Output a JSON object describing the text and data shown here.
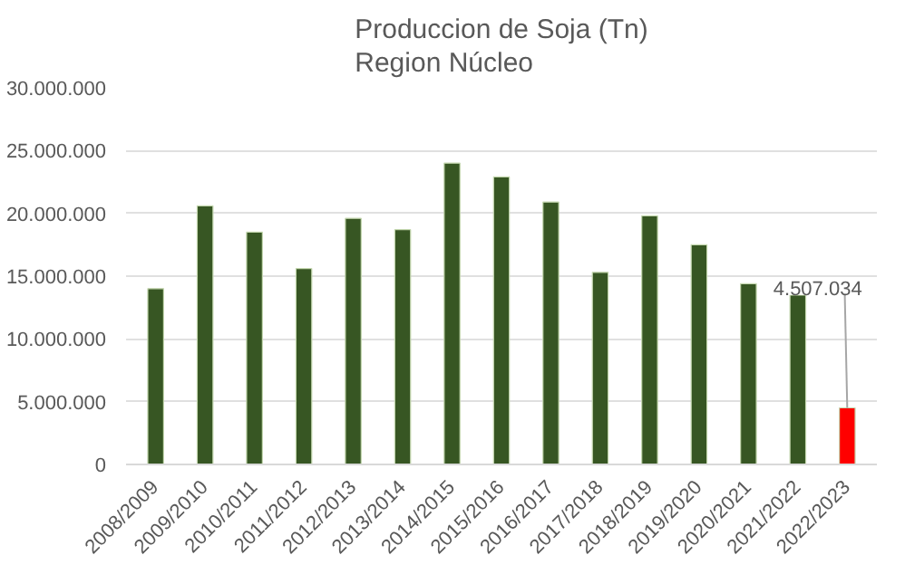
{
  "chart_data": {
    "type": "bar",
    "title": "Produccion de Soja (Tn)\nRegion Núcleo",
    "categories": [
      "2008/2009",
      "2009/2010",
      "2010/2011",
      "2011/2012",
      "2012/2013",
      "2013/2014",
      "2014/2015",
      "2015/2016",
      "2016/2017",
      "2017/2018",
      "2018/2019",
      "2019/2020",
      "2020/2021",
      "2021/2022",
      "2022/2023"
    ],
    "values": [
      14000000,
      20600000,
      18500000,
      15600000,
      19600000,
      18700000,
      24000000,
      22900000,
      20900000,
      15300000,
      19800000,
      17500000,
      14400000,
      13500000,
      4507034
    ],
    "colors": [
      "#375623",
      "#375623",
      "#375623",
      "#375623",
      "#375623",
      "#375623",
      "#375623",
      "#375623",
      "#375623",
      "#375623",
      "#375623",
      "#375623",
      "#375623",
      "#375623",
      "#ff0000"
    ],
    "value_labels": [
      null,
      null,
      null,
      null,
      null,
      null,
      null,
      null,
      null,
      null,
      null,
      null,
      null,
      null,
      "4.507.034"
    ],
    "ylim": [
      0,
      30000000
    ],
    "yticks": [
      {
        "value": 0,
        "label": "0"
      },
      {
        "value": 5000000,
        "label": "5.000.000"
      },
      {
        "value": 10000000,
        "label": "10.000.000"
      },
      {
        "value": 15000000,
        "label": "15.000.000"
      },
      {
        "value": 20000000,
        "label": "20.000.000"
      },
      {
        "value": 25000000,
        "label": "25.000.000"
      },
      {
        "value": 30000000,
        "label": "30.000.000"
      }
    ],
    "grid": "y"
  }
}
